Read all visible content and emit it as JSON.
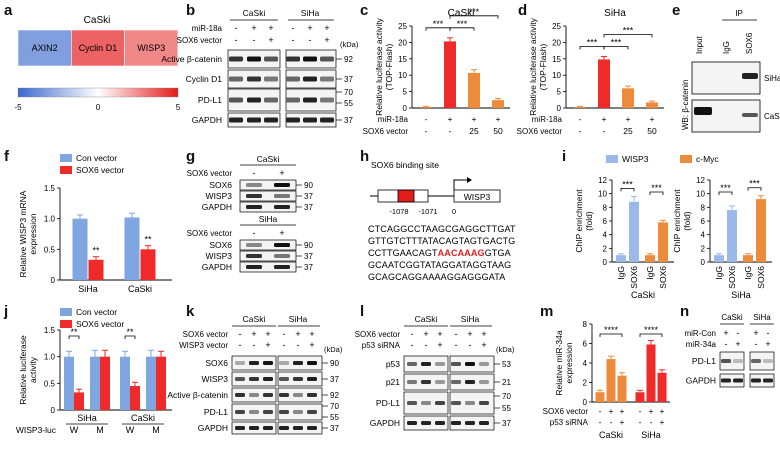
{
  "panel_letters": [
    "a",
    "b",
    "c",
    "d",
    "e",
    "f",
    "g",
    "h",
    "i",
    "j",
    "k",
    "l",
    "m",
    "n"
  ],
  "colors": {
    "blue": "#7fa6e0",
    "red": "#ee2a2a",
    "orange": "#ec8b3c",
    "lightblue": "#9ab8e8"
  },
  "panel_a": {
    "title": "CaSki",
    "genes": [
      "AXIN2",
      "Cyclin D1",
      "WISP3"
    ],
    "values": [
      -3.2,
      3.4,
      2.6
    ],
    "scale_min": "-5",
    "scale_mid": "0",
    "scale_max": "5"
  },
  "panel_b": {
    "cells": [
      "CaSki",
      "SiHa"
    ],
    "row_labels": [
      "miR-18a",
      "SOX6 vector"
    ],
    "signs": [
      [
        "-",
        "+",
        "+"
      ],
      [
        "-",
        "-",
        "+"
      ]
    ],
    "kda": "(kDa)",
    "bands": [
      "Active β-catenin",
      "Cyclin D1",
      "PD-L1",
      "GAPDH"
    ],
    "mw": [
      "92",
      "37",
      "70",
      "55",
      "37"
    ]
  },
  "panel_c": {
    "title": "CaSki",
    "ylabel": "Relative luciferase activity (TOP-Flash)",
    "ticks": [
      "0",
      "5",
      "10",
      "15",
      "20",
      "25"
    ],
    "row1_label": "miR-18a",
    "row1": [
      "-",
      "+",
      "+",
      "+"
    ],
    "row2_label": "SOX6 vector",
    "row2": [
      "-",
      "-",
      "25",
      "50"
    ],
    "sig1": "***",
    "sig2": "***",
    "sig3": "***",
    "chart_data": {
      "type": "bar",
      "values": [
        0.3,
        20.3,
        10.7,
        2.4
      ],
      "errors": [
        0.2,
        1.1,
        1.0,
        0.5
      ],
      "ylim": [
        0,
        25
      ],
      "colors": [
        "#ec8b3c",
        "#ee2a2a",
        "#ec8b3c",
        "#ec8b3c"
      ]
    }
  },
  "panel_d": {
    "title": "SiHa",
    "ylabel": "Relative luciferase activity (TOP-Flash)",
    "ticks": [
      "0",
      "5",
      "10",
      "15",
      "20",
      "25"
    ],
    "row1_label": "miR-18a",
    "row1": [
      "-",
      "+",
      "+",
      "+"
    ],
    "row2_label": "SOX6 vector",
    "row2": [
      "-",
      "-",
      "25",
      "50"
    ],
    "sig1": "***",
    "sig2": "***",
    "sig3": "***",
    "chart_data": {
      "type": "bar",
      "values": [
        0.3,
        14.8,
        6.0,
        1.7
      ],
      "errors": [
        0.2,
        0.9,
        0.7,
        0.4
      ],
      "ylim": [
        0,
        25
      ],
      "colors": [
        "#ec8b3c",
        "#ee2a2a",
        "#ec8b3c",
        "#ec8b3c"
      ]
    }
  },
  "panel_e": {
    "ip": "IP",
    "lanes": [
      "Input",
      "IgG",
      "SOX6"
    ],
    "wb": "WB: β-catenin",
    "rows": [
      "SiHa",
      "CaSki"
    ]
  },
  "panel_f": {
    "legend": [
      "Con vector",
      "SOX6 vector"
    ],
    "ylabel": "Relative WISP3 mRNA expression",
    "ticks": [
      "0",
      "0.5",
      "1.0",
      "1.5"
    ],
    "groups": [
      "SiHa",
      "CaSki"
    ],
    "sig": "**",
    "chart_data": {
      "type": "bar",
      "categories": [
        "SiHa",
        "CaSki"
      ],
      "series": [
        {
          "name": "Con vector",
          "values": [
            1.0,
            1.02
          ],
          "errors": [
            0.06,
            0.07
          ]
        },
        {
          "name": "SOX6 vector",
          "values": [
            0.33,
            0.5
          ],
          "errors": [
            0.05,
            0.06
          ]
        }
      ],
      "ylim": [
        0,
        1.5
      ]
    }
  },
  "panel_g": {
    "blocks": [
      {
        "cell": "CaSki",
        "treat": "SOX6 vector",
        "signs": [
          "-",
          "+"
        ],
        "bands": [
          "SOX6",
          "WISP3",
          "GAPDH"
        ],
        "mw": [
          "90",
          "37",
          "37"
        ]
      },
      {
        "cell": "SiHa",
        "treat": "SOX6 vector",
        "signs": [
          "-",
          "+"
        ],
        "bands": [
          "SOX6",
          "WISP3",
          "GAPDH"
        ],
        "mw": [
          "90",
          "37",
          "37"
        ]
      }
    ]
  },
  "panel_h": {
    "title": "SOX6 binding site",
    "gene": "WISP3",
    "pos1": "-1078",
    "pos2": "-1071",
    "pos3": "0",
    "seq": [
      {
        "pre": "CTCAGGCCTAAGCGAGGCTTGAT",
        "hl": "",
        "post": ""
      },
      {
        "pre": "GTTGTCTTTATACAGTAGTGACTG",
        "hl": "",
        "post": ""
      },
      {
        "pre": "CCTTGAACAGT",
        "hl": "AACAAAG",
        "post": "GTGA"
      },
      {
        "pre": "GCAATCGGTATAGGATAGGTAAG",
        "hl": "",
        "post": ""
      },
      {
        "pre": "GCAGCAGGAAAAGGAGGGATA",
        "hl": "",
        "post": ""
      }
    ]
  },
  "panel_i": {
    "legend": [
      "WISP3",
      "c-Myc"
    ],
    "ylabel": "ChIP enrichment (fold)",
    "ticks": [
      "0",
      "2",
      "4",
      "6",
      "8",
      "10",
      "12"
    ],
    "lanes": [
      "IgG",
      "SOX6",
      "IgG",
      "SOX6"
    ],
    "groups": [
      "CaSki",
      "SiHa"
    ],
    "sig": "***",
    "chart_data": [
      {
        "type": "bar",
        "title": "CaSki",
        "categories": [
          "IgG",
          "SOX6",
          "IgG",
          "SOX6"
        ],
        "values": [
          1.0,
          8.8,
          1.0,
          5.8
        ],
        "errors": [
          0.2,
          0.8,
          0.2,
          0.3
        ],
        "ylim": [
          0,
          12
        ]
      },
      {
        "type": "bar",
        "title": "SiHa",
        "categories": [
          "IgG",
          "SOX6",
          "IgG",
          "SOX6"
        ],
        "values": [
          1.0,
          7.6,
          1.0,
          9.2
        ],
        "errors": [
          0.2,
          0.6,
          0.2,
          0.5
        ],
        "ylim": [
          0,
          12
        ]
      }
    ]
  },
  "panel_j": {
    "legend": [
      "Con vector",
      "SOX6 vector"
    ],
    "ylabel": "Relative luciferase activity",
    "ticks": [
      "0",
      "0.5",
      "1.0",
      "1.5"
    ],
    "xlabels": [
      "W",
      "M",
      "W",
      "M"
    ],
    "groups": [
      "SiHa",
      "CaSki"
    ],
    "xtitle": "WISP3-luc",
    "sig": "**",
    "chart_data": {
      "type": "bar",
      "categories": [
        "W",
        "M",
        "W",
        "M"
      ],
      "series": [
        {
          "name": "Con vector",
          "values": [
            1.0,
            1.0,
            1.0,
            1.0
          ],
          "errors": [
            0.1,
            0.12,
            0.1,
            0.12
          ]
        },
        {
          "name": "SOX6 vector",
          "values": [
            0.33,
            1.0,
            0.45,
            1.0
          ],
          "errors": [
            0.06,
            0.12,
            0.07,
            0.1
          ]
        }
      ],
      "ylim": [
        0,
        1.5
      ]
    }
  },
  "panel_k": {
    "cells": [
      "CaSki",
      "SiHa"
    ],
    "row_labels": [
      "SOX6 vector",
      "WISP3 vector"
    ],
    "signs": [
      [
        "-",
        "+",
        "+"
      ],
      [
        "-",
        "-",
        "+"
      ]
    ],
    "kda": "(kDa)",
    "bands": [
      "SOX6",
      "WISP3",
      "Active β-catenin",
      "PD-L1",
      "GAPDH"
    ],
    "mw": [
      "90",
      "37",
      "92",
      "70",
      "55",
      "37"
    ]
  },
  "panel_l": {
    "cells": [
      "CaSki",
      "SiHa"
    ],
    "row_labels": [
      "SOX6 vector",
      "p53 siRNA"
    ],
    "signs": [
      [
        "-",
        "+",
        "+"
      ],
      [
        "-",
        "-",
        "+"
      ]
    ],
    "kda": "(kDa)",
    "bands": [
      "p53",
      "p21",
      "PD-L1",
      "GAPDH"
    ],
    "mw": [
      "53",
      "21",
      "70",
      "55",
      "37"
    ]
  },
  "panel_m": {
    "ylabel": "Relative miR-34a expression",
    "ticks": [
      "0",
      "2",
      "4",
      "6",
      "8"
    ],
    "row1_label": "SOX6 vector",
    "row1": [
      "-",
      "+",
      "+",
      "-",
      "+",
      "+"
    ],
    "row2_label": "p53 siRNA",
    "row2": [
      "-",
      "-",
      "+",
      "-",
      "-",
      "+"
    ],
    "groups": [
      "CaSki",
      "SiHa"
    ],
    "sig": "****",
    "chart_data": {
      "type": "bar",
      "categories": [
        "CaSki",
        "CaSki",
        "CaSki",
        "SiHa",
        "SiHa",
        "SiHa"
      ],
      "values": [
        1.0,
        4.4,
        2.7,
        1.0,
        5.9,
        3.0
      ],
      "errors": [
        0.2,
        0.3,
        0.3,
        0.2,
        0.4,
        0.3
      ],
      "ylim": [
        0,
        8
      ],
      "colors": [
        "#ec8b3c",
        "#ec8b3c",
        "#ec8b3c",
        "#ee2a2a",
        "#ee2a2a",
        "#ee2a2a"
      ]
    }
  },
  "panel_n": {
    "cells": [
      "CaSki",
      "SiHa"
    ],
    "row_labels": [
      "miR-Con",
      "miR-34a"
    ],
    "signs": [
      [
        "+",
        "-",
        "+",
        "-"
      ],
      [
        "-",
        "+",
        "-",
        "+"
      ]
    ],
    "bands": [
      "PD-L1",
      "GAPDH"
    ]
  }
}
